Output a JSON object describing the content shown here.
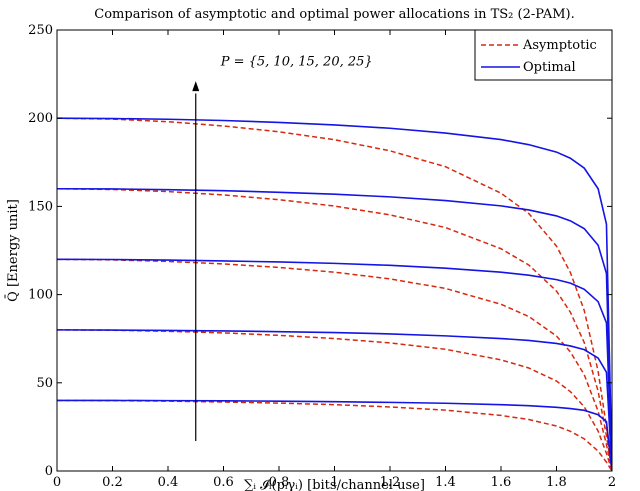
{
  "chart_data": {
    "type": "line",
    "title": "Comparison of asymptotic and optimal power allocations in TS₂ (2-PAM).",
    "xlabel": "∑ᵢ 𝓘ᵢ(pᵢγᵢ) [bits/channel use]",
    "ylabel": "Q̄ [Energy unit]",
    "xlim": [
      0,
      2
    ],
    "ylim": [
      0,
      250
    ],
    "xticks": [
      "0",
      "0.2",
      "0.4",
      "0.6",
      "0.8",
      "1",
      "1.2",
      "1.4",
      "1.6",
      "1.8",
      "2"
    ],
    "yticks": [
      "0",
      "50",
      "100",
      "150",
      "200",
      "250"
    ],
    "grid": false,
    "legend_position": "top-right",
    "annotation": "P = {5, 10, 15, 20, 25}",
    "P_values": [
      5,
      10,
      15,
      20,
      25
    ],
    "series": [
      {
        "name": "Asymptotic",
        "color": "#d62a10",
        "style": "dashed",
        "curves": [
          {
            "P": 5,
            "x": [
              0,
              0.2,
              0.4,
              0.6,
              0.8,
              1.0,
              1.2,
              1.4,
              1.6,
              1.7,
              1.8,
              1.85,
              1.9,
              1.95,
              1.98,
              2.0
            ],
            "y": [
              40,
              39.9,
              39.6,
              39.1,
              38.5,
              37.6,
              36.3,
              34.5,
              31.5,
              29.2,
              25.5,
              22.5,
              18.2,
              11.3,
              5.0,
              0
            ]
          },
          {
            "P": 10,
            "x": [
              0,
              0.2,
              0.4,
              0.6,
              0.8,
              1.0,
              1.2,
              1.4,
              1.6,
              1.7,
              1.8,
              1.85,
              1.9,
              1.95,
              1.98,
              2.0
            ],
            "y": [
              80,
              79.8,
              79.2,
              78.3,
              76.9,
              75.1,
              72.6,
              69.0,
              63.0,
              58.4,
              51.0,
              45.0,
              36.4,
              22.6,
              10.0,
              0
            ]
          },
          {
            "P": 15,
            "x": [
              0,
              0.2,
              0.4,
              0.6,
              0.8,
              1.0,
              1.2,
              1.4,
              1.6,
              1.7,
              1.8,
              1.85,
              1.9,
              1.95,
              1.98,
              2.0
            ],
            "y": [
              120,
              119.7,
              118.8,
              117.4,
              115.4,
              112.7,
              108.9,
              103.5,
              94.5,
              87.6,
              76.5,
              67.5,
              54.6,
              33.9,
              15.0,
              0
            ]
          },
          {
            "P": 20,
            "x": [
              0,
              0.2,
              0.4,
              0.6,
              0.8,
              1.0,
              1.2,
              1.4,
              1.6,
              1.7,
              1.8,
              1.85,
              1.9,
              1.95,
              1.98,
              2.0
            ],
            "y": [
              160,
              159.6,
              158.4,
              156.5,
              153.8,
              150.2,
              145.2,
              138.0,
              126.0,
              116.8,
              102.0,
              90.0,
              72.8,
              45.2,
              20.0,
              0
            ]
          },
          {
            "P": 25,
            "x": [
              0,
              0.2,
              0.4,
              0.6,
              0.8,
              1.0,
              1.2,
              1.4,
              1.6,
              1.7,
              1.8,
              1.85,
              1.9,
              1.95,
              1.98,
              2.0
            ],
            "y": [
              200,
              199.5,
              198.0,
              195.6,
              192.3,
              187.8,
              181.5,
              172.5,
              157.5,
              146.0,
              127.5,
              112.5,
              91.0,
              56.5,
              25.0,
              0
            ]
          }
        ]
      },
      {
        "name": "Optimal",
        "color": "#1414e6",
        "style": "solid",
        "curves": [
          {
            "P": 5,
            "x": [
              0,
              0.2,
              0.4,
              0.6,
              0.8,
              1.0,
              1.2,
              1.4,
              1.6,
              1.7,
              1.8,
              1.85,
              1.9,
              1.95,
              1.98,
              2.0
            ],
            "y": [
              40,
              40.0,
              39.9,
              39.8,
              39.6,
              39.3,
              38.9,
              38.4,
              37.6,
              37.0,
              36.1,
              35.4,
              34.4,
              31.9,
              28.0,
              0
            ]
          },
          {
            "P": 10,
            "x": [
              0,
              0.2,
              0.4,
              0.6,
              0.8,
              1.0,
              1.2,
              1.4,
              1.6,
              1.7,
              1.8,
              1.85,
              1.9,
              1.95,
              1.98,
              2.0
            ],
            "y": [
              80,
              79.9,
              79.7,
              79.4,
              79.0,
              78.5,
              77.7,
              76.6,
              75.1,
              74.0,
              72.3,
              70.9,
              68.8,
              64.0,
              56.0,
              0
            ]
          },
          {
            "P": 15,
            "x": [
              0,
              0.2,
              0.4,
              0.6,
              0.8,
              1.0,
              1.2,
              1.4,
              1.6,
              1.7,
              1.8,
              1.85,
              1.9,
              1.95,
              1.98,
              2.0
            ],
            "y": [
              120,
              119.9,
              119.6,
              119.1,
              118.5,
              117.7,
              116.6,
              115.0,
              112.7,
              111.0,
              108.5,
              106.5,
              103.0,
              96.0,
              84.0,
              0
            ]
          },
          {
            "P": 20,
            "x": [
              0,
              0.2,
              0.4,
              0.6,
              0.8,
              1.0,
              1.2,
              1.4,
              1.6,
              1.7,
              1.8,
              1.85,
              1.9,
              1.95,
              1.98,
              2.0
            ],
            "y": [
              160,
              159.9,
              159.5,
              158.9,
              158.0,
              156.9,
              155.4,
              153.3,
              150.3,
              148.0,
              144.6,
              141.8,
              137.4,
              128.0,
              112.0,
              0
            ]
          },
          {
            "P": 25,
            "x": [
              0,
              0.2,
              0.4,
              0.6,
              0.8,
              1.0,
              1.2,
              1.4,
              1.6,
              1.7,
              1.8,
              1.85,
              1.9,
              1.95,
              1.98,
              2.0
            ],
            "y": [
              200,
              199.8,
              199.4,
              198.7,
              197.6,
              196.2,
              194.3,
              191.6,
              187.9,
              185.0,
              180.8,
              177.3,
              171.7,
              160.0,
              140.0,
              0
            ]
          }
        ]
      }
    ]
  }
}
